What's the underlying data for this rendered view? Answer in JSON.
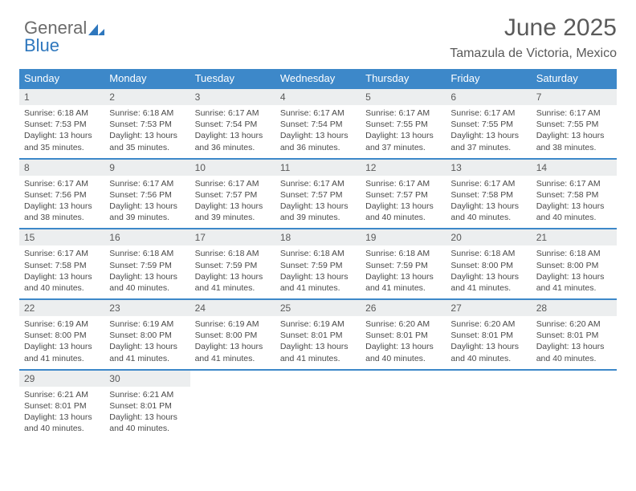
{
  "logo": {
    "text1": "General",
    "text2": "Blue"
  },
  "header": {
    "title": "June 2025",
    "location": "Tamazula de Victoria, Mexico"
  },
  "colors": {
    "header_bg": "#3d88c9",
    "header_text": "#ffffff",
    "row_border": "#3d88c9",
    "daynum_bg": "#eceeef",
    "text": "#4a4a4a",
    "logo_gray": "#6b6b6b",
    "logo_blue": "#2e77bd",
    "background": "#ffffff"
  },
  "weekdays": [
    "Sunday",
    "Monday",
    "Tuesday",
    "Wednesday",
    "Thursday",
    "Friday",
    "Saturday"
  ],
  "days": [
    {
      "n": 1,
      "sr": "6:18 AM",
      "ss": "7:53 PM",
      "dl": "13 hours and 35 minutes."
    },
    {
      "n": 2,
      "sr": "6:18 AM",
      "ss": "7:53 PM",
      "dl": "13 hours and 35 minutes."
    },
    {
      "n": 3,
      "sr": "6:17 AM",
      "ss": "7:54 PM",
      "dl": "13 hours and 36 minutes."
    },
    {
      "n": 4,
      "sr": "6:17 AM",
      "ss": "7:54 PM",
      "dl": "13 hours and 36 minutes."
    },
    {
      "n": 5,
      "sr": "6:17 AM",
      "ss": "7:55 PM",
      "dl": "13 hours and 37 minutes."
    },
    {
      "n": 6,
      "sr": "6:17 AM",
      "ss": "7:55 PM",
      "dl": "13 hours and 37 minutes."
    },
    {
      "n": 7,
      "sr": "6:17 AM",
      "ss": "7:55 PM",
      "dl": "13 hours and 38 minutes."
    },
    {
      "n": 8,
      "sr": "6:17 AM",
      "ss": "7:56 PM",
      "dl": "13 hours and 38 minutes."
    },
    {
      "n": 9,
      "sr": "6:17 AM",
      "ss": "7:56 PM",
      "dl": "13 hours and 39 minutes."
    },
    {
      "n": 10,
      "sr": "6:17 AM",
      "ss": "7:57 PM",
      "dl": "13 hours and 39 minutes."
    },
    {
      "n": 11,
      "sr": "6:17 AM",
      "ss": "7:57 PM",
      "dl": "13 hours and 39 minutes."
    },
    {
      "n": 12,
      "sr": "6:17 AM",
      "ss": "7:57 PM",
      "dl": "13 hours and 40 minutes."
    },
    {
      "n": 13,
      "sr": "6:17 AM",
      "ss": "7:58 PM",
      "dl": "13 hours and 40 minutes."
    },
    {
      "n": 14,
      "sr": "6:17 AM",
      "ss": "7:58 PM",
      "dl": "13 hours and 40 minutes."
    },
    {
      "n": 15,
      "sr": "6:17 AM",
      "ss": "7:58 PM",
      "dl": "13 hours and 40 minutes."
    },
    {
      "n": 16,
      "sr": "6:18 AM",
      "ss": "7:59 PM",
      "dl": "13 hours and 40 minutes."
    },
    {
      "n": 17,
      "sr": "6:18 AM",
      "ss": "7:59 PM",
      "dl": "13 hours and 41 minutes."
    },
    {
      "n": 18,
      "sr": "6:18 AM",
      "ss": "7:59 PM",
      "dl": "13 hours and 41 minutes."
    },
    {
      "n": 19,
      "sr": "6:18 AM",
      "ss": "7:59 PM",
      "dl": "13 hours and 41 minutes."
    },
    {
      "n": 20,
      "sr": "6:18 AM",
      "ss": "8:00 PM",
      "dl": "13 hours and 41 minutes."
    },
    {
      "n": 21,
      "sr": "6:18 AM",
      "ss": "8:00 PM",
      "dl": "13 hours and 41 minutes."
    },
    {
      "n": 22,
      "sr": "6:19 AM",
      "ss": "8:00 PM",
      "dl": "13 hours and 41 minutes."
    },
    {
      "n": 23,
      "sr": "6:19 AM",
      "ss": "8:00 PM",
      "dl": "13 hours and 41 minutes."
    },
    {
      "n": 24,
      "sr": "6:19 AM",
      "ss": "8:00 PM",
      "dl": "13 hours and 41 minutes."
    },
    {
      "n": 25,
      "sr": "6:19 AM",
      "ss": "8:01 PM",
      "dl": "13 hours and 41 minutes."
    },
    {
      "n": 26,
      "sr": "6:20 AM",
      "ss": "8:01 PM",
      "dl": "13 hours and 40 minutes."
    },
    {
      "n": 27,
      "sr": "6:20 AM",
      "ss": "8:01 PM",
      "dl": "13 hours and 40 minutes."
    },
    {
      "n": 28,
      "sr": "6:20 AM",
      "ss": "8:01 PM",
      "dl": "13 hours and 40 minutes."
    },
    {
      "n": 29,
      "sr": "6:21 AM",
      "ss": "8:01 PM",
      "dl": "13 hours and 40 minutes."
    },
    {
      "n": 30,
      "sr": "6:21 AM",
      "ss": "8:01 PM",
      "dl": "13 hours and 40 minutes."
    }
  ],
  "labels": {
    "sunrise": "Sunrise:",
    "sunset": "Sunset:",
    "daylight": "Daylight:"
  },
  "layout": {
    "start_weekday": 0,
    "columns": 7,
    "rows": 5
  }
}
